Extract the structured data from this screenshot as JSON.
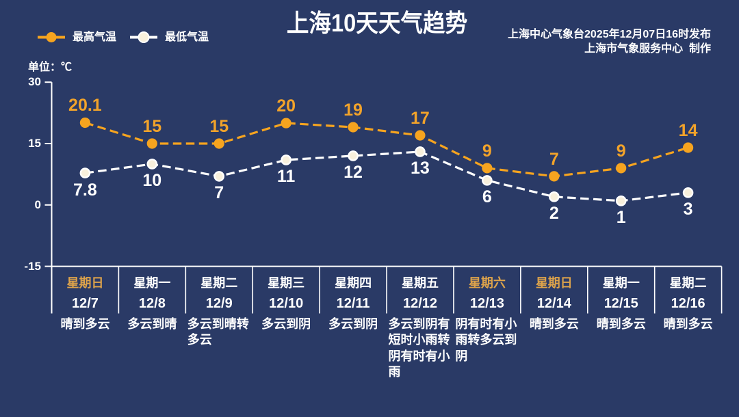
{
  "header": {
    "title": "上海10天天气趋势",
    "publisher_line1": "上海中心气象台2025年12月07日16时发布",
    "publisher_line2": "上海市气象服务中心  制作"
  },
  "legend": {
    "high_label": "最高气温",
    "low_label": "最低气温"
  },
  "unit_label": "单位：℃",
  "colors": {
    "background": "#2a3a66",
    "high_series": "#f6a41f",
    "high_label": "#f2a32a",
    "low_series": "#ffffff",
    "low_dot_fill": "#f8f0dc",
    "axis": "#ffffff",
    "text": "#ffffff",
    "weekend_day": "#dda34b"
  },
  "chart_data": {
    "type": "line",
    "title": "上海10天天气趋势",
    "ylabel": "单位：℃",
    "ylim": [
      -15,
      30
    ],
    "yticks": [
      30,
      15,
      0,
      -15
    ],
    "grid": false,
    "legend_position": "top-left",
    "line_style": "dashed",
    "categories": [
      {
        "day": "星期日",
        "date": "12/7",
        "weather": "晴到多云",
        "weekend": true
      },
      {
        "day": "星期一",
        "date": "12/8",
        "weather": "多云到晴",
        "weekend": false
      },
      {
        "day": "星期二",
        "date": "12/9",
        "weather": "多云到晴转多云",
        "weekend": false
      },
      {
        "day": "星期三",
        "date": "12/10",
        "weather": "多云到阴",
        "weekend": false
      },
      {
        "day": "星期四",
        "date": "12/11",
        "weather": "多云到阴",
        "weekend": false
      },
      {
        "day": "星期五",
        "date": "12/12",
        "weather": "多云到阴有短时小雨转阴有时有小雨",
        "weekend": false
      },
      {
        "day": "星期六",
        "date": "12/13",
        "weather": "阴有时有小雨转多云到阴",
        "weekend": true
      },
      {
        "day": "星期日",
        "date": "12/14",
        "weather": "晴到多云",
        "weekend": true
      },
      {
        "day": "星期一",
        "date": "12/15",
        "weather": "晴到多云",
        "weekend": false
      },
      {
        "day": "星期二",
        "date": "12/16",
        "weather": "晴到多云",
        "weekend": false
      }
    ],
    "series": [
      {
        "name": "最高气温",
        "values": [
          20.1,
          15,
          15,
          20,
          19,
          17,
          9,
          7,
          9,
          14
        ],
        "color": "#f6a41f"
      },
      {
        "name": "最低气温",
        "values": [
          7.8,
          10,
          7,
          11,
          12,
          13,
          6,
          2,
          1,
          3
        ],
        "color": "#ffffff"
      }
    ]
  }
}
